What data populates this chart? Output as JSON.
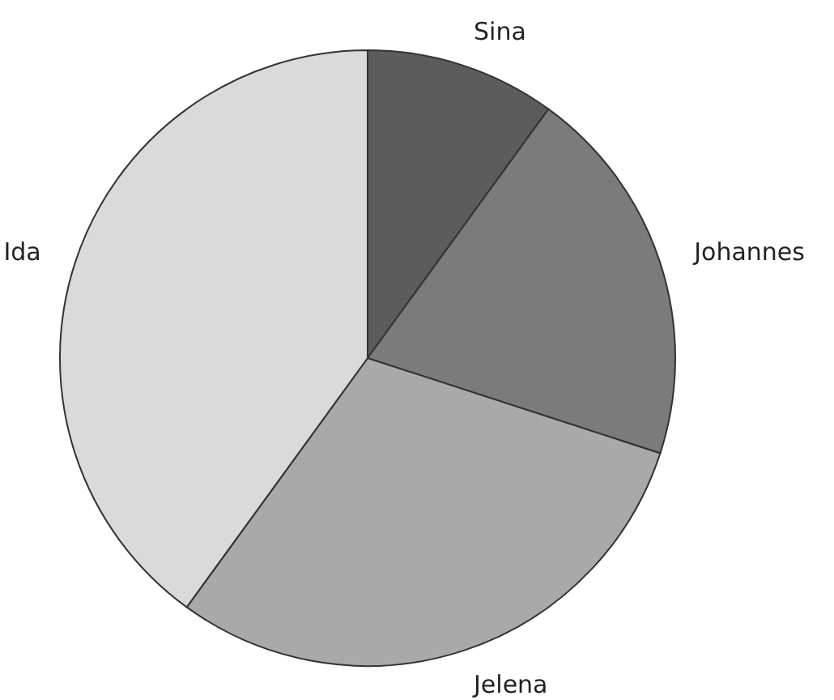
{
  "chart_data": {
    "type": "pie",
    "categories": [
      "Sina",
      "Johannes",
      "Jelena",
      "Ida"
    ],
    "values": [
      10,
      20,
      30,
      40
    ],
    "colors": [
      "#5c5c5c",
      "#7b7b7b",
      "#a9a9a9",
      "#dadada"
    ],
    "legend": false
  }
}
